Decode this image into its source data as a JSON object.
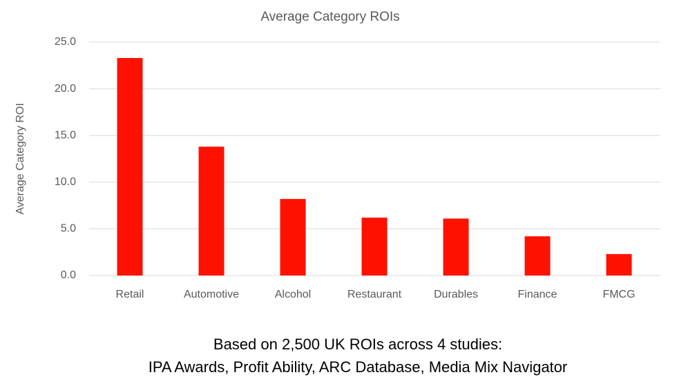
{
  "chart_data": {
    "type": "bar",
    "title": "Average Category ROIs",
    "y_label": "Average Category ROI",
    "categories": [
      "Retail",
      "Automotive",
      "Alcohol",
      "Restaurant",
      "Durables",
      "Finance",
      "FMCG"
    ],
    "values": [
      23.3,
      13.8,
      8.2,
      6.2,
      6.1,
      4.2,
      2.3
    ],
    "color": "#fe1100",
    "ylim": [
      0,
      25
    ],
    "yticks": [
      {
        "value": 0,
        "label": "0.0"
      },
      {
        "value": 5,
        "label": "5.0"
      },
      {
        "value": 10,
        "label": "10.0"
      },
      {
        "value": 15,
        "label": "15.0"
      },
      {
        "value": 20,
        "label": "20.0"
      },
      {
        "value": 25,
        "label": "25.0"
      }
    ],
    "grid": true,
    "caption": [
      "Based on 2,500 UK ROIs across 4 studies:",
      "IPA Awards, Profit Ability, ARC Database, Media Mix Navigator"
    ]
  }
}
